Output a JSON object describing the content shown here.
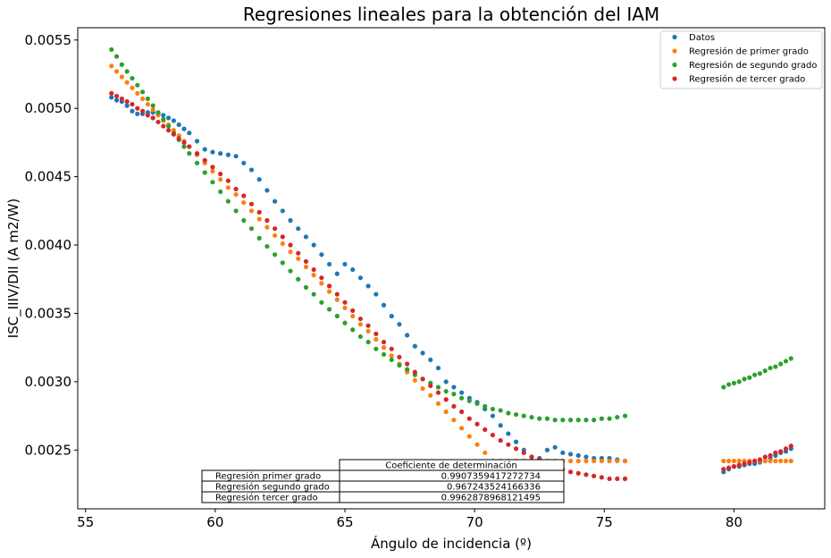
{
  "chart_data": {
    "type": "scatter",
    "title": "Regresiones lineales para la obtención del IAM",
    "xlabel": "Ángulo de incidencia (º)",
    "ylabel": "ISC_IIIV/DII (A m2/W)",
    "xlim": [
      54.7,
      83.5
    ],
    "ylim": [
      0.00207,
      0.00559
    ],
    "xticks": [
      55,
      60,
      65,
      70,
      75,
      80
    ],
    "xtick_labels": [
      "55",
      "60",
      "65",
      "70",
      "75",
      "80"
    ],
    "yticks": [
      0.0025,
      0.003,
      0.0035,
      0.004,
      0.0045,
      0.005,
      0.0055
    ],
    "ytick_labels": [
      "0.0025",
      "0.0030",
      "0.0035",
      "0.0040",
      "0.0045",
      "0.0050",
      "0.0055"
    ],
    "legend_position": "top-right",
    "x": [
      56.0,
      56.2,
      56.4,
      56.6,
      56.8,
      57.0,
      57.2,
      57.4,
      57.6,
      57.8,
      58.0,
      58.2,
      58.4,
      58.6,
      58.8,
      59.0,
      59.3,
      59.6,
      59.9,
      60.2,
      60.5,
      60.8,
      61.1,
      61.4,
      61.7,
      62.0,
      62.3,
      62.6,
      62.9,
      63.2,
      63.5,
      63.8,
      64.1,
      64.4,
      64.7,
      65.0,
      65.3,
      65.6,
      65.9,
      66.2,
      66.5,
      66.8,
      67.1,
      67.4,
      67.7,
      68.0,
      68.3,
      68.6,
      68.9,
      69.2,
      69.5,
      69.8,
      70.1,
      70.4,
      70.7,
      71.0,
      71.3,
      71.6,
      71.9,
      72.2,
      72.5,
      72.8,
      73.1,
      73.4,
      73.7,
      74.0,
      74.3,
      74.6,
      74.9,
      75.2,
      75.5,
      75.8,
      79.6,
      79.8,
      80.0,
      80.2,
      80.4,
      80.6,
      80.8,
      81.0,
      81.2,
      81.4,
      81.6,
      81.8,
      82.0,
      82.2
    ],
    "series": [
      {
        "name": "Datos",
        "color": "#1f77b4",
        "values": [
          0.00508,
          0.00506,
          0.00505,
          0.00502,
          0.00498,
          0.00496,
          0.00496,
          0.00497,
          0.00497,
          0.00496,
          0.00495,
          0.00493,
          0.00491,
          0.00488,
          0.00485,
          0.00482,
          0.00476,
          0.0047,
          0.00468,
          0.00467,
          0.00466,
          0.00465,
          0.0046,
          0.00455,
          0.00448,
          0.0044,
          0.00432,
          0.00425,
          0.00418,
          0.00412,
          0.00406,
          0.004,
          0.00393,
          0.00386,
          0.00379,
          0.00386,
          0.00382,
          0.00376,
          0.0037,
          0.00364,
          0.00356,
          0.00348,
          0.00342,
          0.00334,
          0.00326,
          0.00321,
          0.00316,
          0.0031,
          0.003,
          0.00296,
          0.00292,
          0.00288,
          0.00285,
          0.0028,
          0.00275,
          0.00268,
          0.00262,
          0.00256,
          0.0025,
          0.00245,
          0.00244,
          0.0025,
          0.00252,
          0.00248,
          0.00247,
          0.00246,
          0.00245,
          0.00244,
          0.00244,
          0.00244,
          0.00243,
          0.00242,
          0.00234,
          0.00236,
          0.00238,
          0.00238,
          0.00239,
          0.0024,
          0.0024,
          0.00241,
          0.00242,
          0.00244,
          0.00246,
          0.00248,
          0.00249,
          0.00251
        ]
      },
      {
        "name": "Regresión de primer grado",
        "color": "#ff7f0e",
        "values": [
          0.00531,
          0.00527,
          0.00523,
          0.00519,
          0.00515,
          0.00511,
          0.00507,
          0.00503,
          0.00499,
          0.00495,
          0.00491,
          0.00488,
          0.00484,
          0.0048,
          0.00476,
          0.00472,
          0.00466,
          0.0046,
          0.00454,
          0.00448,
          0.00442,
          0.00437,
          0.00431,
          0.00425,
          0.00419,
          0.00413,
          0.00407,
          0.00401,
          0.00395,
          0.0039,
          0.00384,
          0.00378,
          0.00372,
          0.00366,
          0.0036,
          0.00354,
          0.00348,
          0.00342,
          0.00337,
          0.00331,
          0.00325,
          0.00319,
          0.00313,
          0.00307,
          0.00301,
          0.00295,
          0.0029,
          0.00284,
          0.00278,
          0.00272,
          0.00266,
          0.0026,
          0.00254,
          0.00248,
          0.00242,
          0.00242,
          0.00242,
          0.00242,
          0.00242,
          0.00242,
          0.00242,
          0.00242,
          0.00242,
          0.00242,
          0.00242,
          0.00242,
          0.00242,
          0.00242,
          0.00242,
          0.00242,
          0.00242,
          0.00242,
          0.00242,
          0.00242,
          0.00242,
          0.00242,
          0.00242,
          0.00242,
          0.00242,
          0.00242,
          0.00242,
          0.00242,
          0.00242,
          0.00242,
          0.00242,
          0.00242
        ]
      },
      {
        "name": "Regresión de segundo grado",
        "color": "#2ca02c",
        "values": [
          0.00543,
          0.00538,
          0.00532,
          0.00527,
          0.00522,
          0.00517,
          0.00512,
          0.00507,
          0.00502,
          0.00497,
          0.00492,
          0.00487,
          0.00482,
          0.00477,
          0.00472,
          0.00467,
          0.0046,
          0.00453,
          0.00446,
          0.00439,
          0.00432,
          0.00425,
          0.00418,
          0.00412,
          0.00405,
          0.00399,
          0.00393,
          0.00387,
          0.00381,
          0.00375,
          0.00369,
          0.00364,
          0.00358,
          0.00353,
          0.00348,
          0.00343,
          0.00338,
          0.00333,
          0.00329,
          0.00324,
          0.0032,
          0.00316,
          0.00312,
          0.00309,
          0.00305,
          0.00302,
          0.00299,
          0.00296,
          0.00293,
          0.00291,
          0.00288,
          0.00286,
          0.00284,
          0.00282,
          0.0028,
          0.00279,
          0.00277,
          0.00276,
          0.00275,
          0.00274,
          0.00273,
          0.00273,
          0.00272,
          0.00272,
          0.00272,
          0.00272,
          0.00272,
          0.00272,
          0.00273,
          0.00273,
          0.00274,
          0.00275,
          0.00296,
          0.00298,
          0.00299,
          0.003,
          0.00302,
          0.00303,
          0.00305,
          0.00306,
          0.00308,
          0.0031,
          0.00311,
          0.00313,
          0.00315,
          0.00317
        ]
      },
      {
        "name": "Regresión de tercer grado",
        "color": "#d62728",
        "values": [
          0.00511,
          0.00509,
          0.00507,
          0.00505,
          0.00503,
          0.005,
          0.00498,
          0.00495,
          0.00493,
          0.0049,
          0.00487,
          0.00484,
          0.00481,
          0.00478,
          0.00475,
          0.00472,
          0.00467,
          0.00462,
          0.00457,
          0.00452,
          0.00447,
          0.00441,
          0.00436,
          0.0043,
          0.00424,
          0.00418,
          0.00412,
          0.00406,
          0.004,
          0.00394,
          0.00388,
          0.00382,
          0.00376,
          0.0037,
          0.00364,
          0.00358,
          0.00352,
          0.00346,
          0.00341,
          0.00335,
          0.00329,
          0.00324,
          0.00318,
          0.00313,
          0.00307,
          0.00302,
          0.00297,
          0.00292,
          0.00287,
          0.00282,
          0.00278,
          0.00273,
          0.00269,
          0.00265,
          0.00261,
          0.00257,
          0.00254,
          0.00251,
          0.00248,
          0.00245,
          0.00243,
          0.0024,
          0.00238,
          0.00236,
          0.00234,
          0.00233,
          0.00232,
          0.00231,
          0.0023,
          0.00229,
          0.00229,
          0.00229,
          0.00236,
          0.00237,
          0.00238,
          0.00239,
          0.0024,
          0.00241,
          0.00242,
          0.00243,
          0.00245,
          0.00246,
          0.00248,
          0.00249,
          0.00251,
          0.00253
        ]
      }
    ]
  },
  "table": {
    "header": "Coeficiente de determinación",
    "rows": [
      {
        "label": "Regresión primer grado",
        "value": "0.9907359417272734"
      },
      {
        "label": "Regresión segundo grado",
        "value": "0.967243524166336"
      },
      {
        "label": "Regresión tercer grado",
        "value": "0.9962878968121495"
      }
    ]
  }
}
